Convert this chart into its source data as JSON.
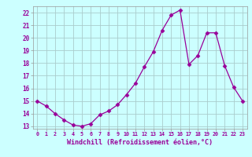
{
  "x": [
    0,
    1,
    2,
    3,
    4,
    5,
    6,
    7,
    8,
    9,
    10,
    11,
    12,
    13,
    14,
    15,
    16,
    17,
    18,
    19,
    20,
    21,
    22,
    23
  ],
  "y": [
    15.0,
    14.6,
    14.0,
    13.5,
    13.1,
    13.0,
    13.2,
    13.9,
    14.2,
    14.7,
    15.5,
    16.4,
    17.7,
    18.9,
    20.6,
    21.8,
    22.2,
    17.9,
    18.6,
    20.4,
    20.4,
    17.8,
    16.1,
    15.0
  ],
  "line_color": "#990099",
  "marker": "D",
  "marker_size": 2.5,
  "background_color": "#ccffff",
  "grid_color": "#aacccc",
  "xlabel": "Windchill (Refroidissement éolien,°C)",
  "tick_color": "#990099",
  "xlim_min": -0.5,
  "xlim_max": 23.5,
  "ylim_min": 12.8,
  "ylim_max": 22.5,
  "yticks": [
    13,
    14,
    15,
    16,
    17,
    18,
    19,
    20,
    21,
    22
  ],
  "xticks": [
    0,
    1,
    2,
    3,
    4,
    5,
    6,
    7,
    8,
    9,
    10,
    11,
    12,
    13,
    14,
    15,
    16,
    17,
    18,
    19,
    20,
    21,
    22,
    23
  ]
}
